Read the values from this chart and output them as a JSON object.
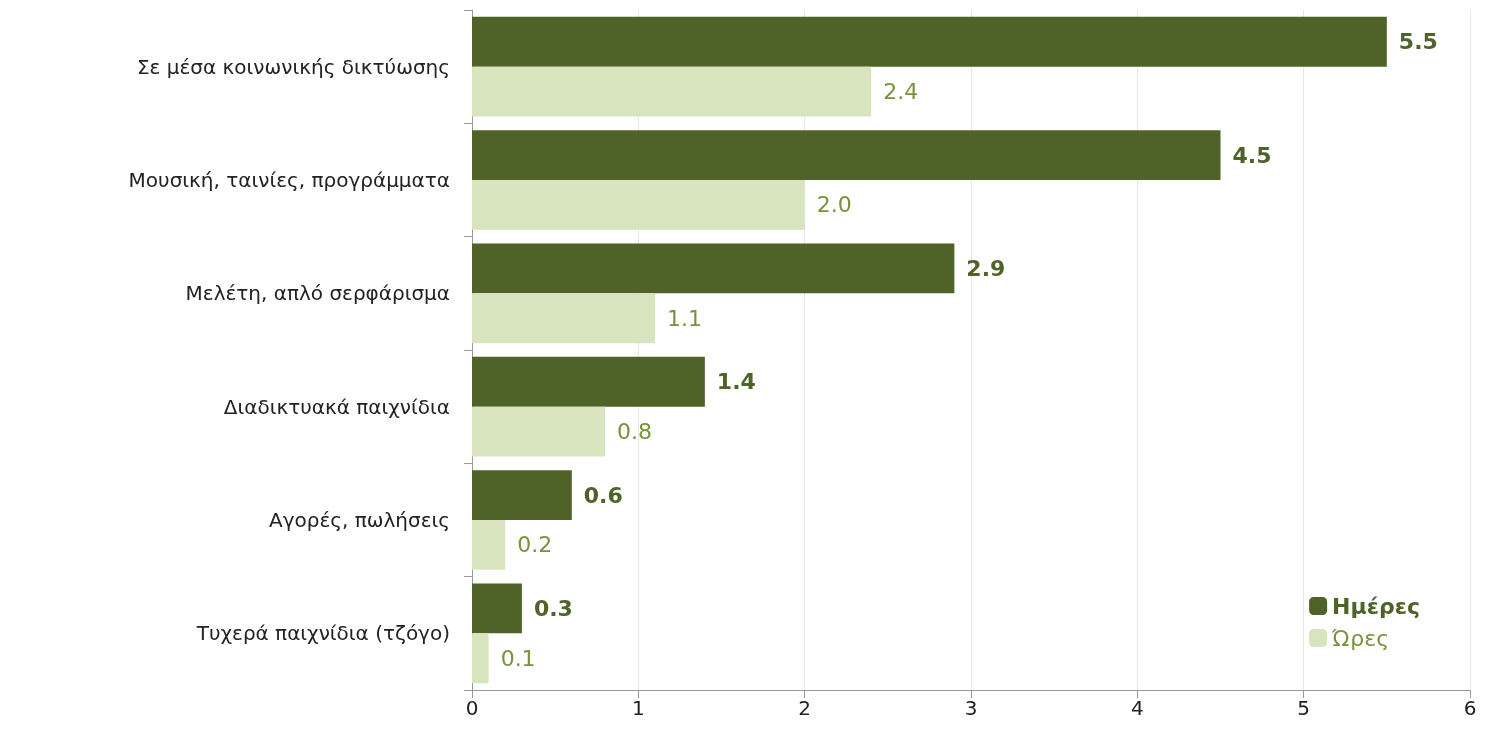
{
  "chart_data": {
    "type": "bar",
    "orientation": "horizontal",
    "categories": [
      "Σε μέσα κοινωνικής δικτύωσης",
      "Μουσική, ταινίες, προγράμματα",
      "Μελέτη, απλό σερφάρισμα",
      "Διαδικτυακά παιχνίδια",
      "Αγορές, πωλήσεις",
      "Τυχερά παιχνίδια (τζόγο)"
    ],
    "series": [
      {
        "name": "Ημέρες",
        "color": "#4f6228",
        "values": [
          5.5,
          4.5,
          2.9,
          1.4,
          0.6,
          0.3
        ],
        "value_labels": [
          "5.5",
          "4.5",
          "2.9",
          "1.4",
          "0.6",
          "0.3"
        ]
      },
      {
        "name": "Ώρες",
        "color": "#d7e4bd",
        "values": [
          2.4,
          2.0,
          1.1,
          0.8,
          0.2,
          0.1
        ],
        "value_labels": [
          "2.4",
          "2.0",
          "1.1",
          "0.8",
          "0.2",
          "0.1"
        ]
      }
    ],
    "xlim": [
      0,
      6
    ],
    "xticks": [
      0,
      1,
      2,
      3,
      4,
      5,
      6
    ],
    "grid": "x",
    "legend": "bottom right"
  }
}
